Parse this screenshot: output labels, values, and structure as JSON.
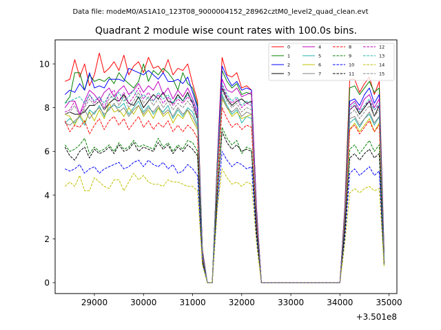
{
  "suptitle": "Data file: modeM0/AS1A10_123T08_9000004152_28962cztM0_level2_quad_clean.evt",
  "chart_data": {
    "type": "line",
    "title": "Quadrant 2 module wise count rates with 100.0s bins.",
    "xlabel": "",
    "ylabel": "",
    "x_offset_label": "+3.501e8",
    "xlim": [
      28200,
      35160
    ],
    "ylim": [
      -0.5,
      11.1
    ],
    "x_ticks": [
      29000,
      30000,
      31000,
      32000,
      33000,
      34000,
      35000
    ],
    "x_tick_labels": [
      "29000",
      "30000",
      "31000",
      "32000",
      "33000",
      "34000",
      "35000"
    ],
    "y_ticks": [
      0,
      2,
      4,
      6,
      8,
      10
    ],
    "y_tick_labels": [
      "0",
      "2",
      "4",
      "6",
      "8",
      "10"
    ],
    "grid": false,
    "legend_position": "top-right",
    "x": [
      28400,
      28500,
      28600,
      28700,
      28800,
      28900,
      29000,
      29100,
      29200,
      29300,
      29400,
      29500,
      29600,
      29700,
      29800,
      29900,
      30000,
      30100,
      30200,
      30300,
      30400,
      30500,
      30600,
      30700,
      30800,
      30900,
      31000,
      31100,
      31200,
      31300,
      31400,
      31500,
      31600,
      31700,
      31800,
      31900,
      32000,
      32100,
      32200,
      32300,
      32400,
      32500,
      32600,
      32700,
      32800,
      32900,
      33000,
      33100,
      33200,
      33300,
      33400,
      33500,
      33600,
      33700,
      33800,
      33900,
      34000,
      34100,
      34200,
      34300,
      34400,
      34500,
      34600,
      34700,
      34800,
      34900
    ],
    "series": [
      {
        "name": "0",
        "color": "#ff0000",
        "style": "solid",
        "values": [
          9.2,
          9.3,
          10.2,
          9.4,
          10.0,
          9.0,
          9.5,
          10.5,
          9.6,
          9.8,
          10.1,
          9.7,
          10.4,
          9.5,
          9.9,
          10.1,
          9.6,
          10.3,
          9.8,
          9.9,
          9.6,
          10.2,
          9.5,
          9.8,
          9.7,
          10.0,
          9.1,
          8.3,
          1.5,
          0.0,
          0.0,
          5.5,
          10.3,
          9.5,
          9.4,
          9.6,
          8.9,
          9.0,
          8.8,
          3.5,
          0.0,
          0.0,
          0.0,
          0.0,
          0.0,
          0.0,
          0.0,
          0.0,
          0.0,
          0.0,
          0.0,
          0.0,
          0.0,
          0.0,
          0.0,
          0.0,
          0.0,
          3.5,
          9.3,
          9.3,
          8.7,
          9.1,
          9.4,
          8.6,
          9.2,
          1.4
        ]
      },
      {
        "name": "1",
        "color": "#008000",
        "style": "solid",
        "values": [
          8.2,
          8.5,
          9.6,
          9.6,
          8.8,
          9.5,
          9.2,
          9.3,
          9.2,
          9.4,
          9.1,
          9.6,
          9.3,
          9.1,
          8.9,
          9.2,
          10.0,
          9.2,
          9.7,
          9.5,
          9.8,
          9.6,
          9.3,
          8.8,
          9.6,
          9.1,
          8.9,
          8.1,
          1.4,
          0.0,
          0.0,
          5.4,
          9.7,
          9.2,
          8.9,
          9.1,
          8.6,
          8.7,
          8.6,
          3.3,
          0.0,
          0.0,
          0.0,
          0.0,
          0.0,
          0.0,
          0.0,
          0.0,
          0.0,
          0.0,
          0.0,
          0.0,
          0.0,
          0.0,
          0.0,
          0.0,
          0.0,
          3.4,
          8.9,
          9.0,
          8.6,
          8.9,
          9.2,
          8.7,
          8.9,
          1.3
        ]
      },
      {
        "name": "2",
        "color": "#0000ff",
        "style": "solid",
        "values": [
          8.6,
          8.8,
          8.7,
          9.1,
          8.8,
          9.6,
          8.9,
          9.0,
          8.9,
          9.3,
          9.3,
          9.3,
          9.2,
          9.8,
          9.7,
          9.6,
          9.5,
          9.7,
          9.5,
          9.3,
          9.6,
          9.2,
          9.2,
          9.3,
          9.1,
          9.4,
          8.7,
          8.0,
          1.4,
          0.0,
          0.0,
          5.3,
          9.9,
          9.4,
          9.0,
          9.2,
          8.8,
          8.9,
          8.8,
          3.4,
          0.0,
          0.0,
          0.0,
          0.0,
          0.0,
          0.0,
          0.0,
          0.0,
          0.0,
          0.0,
          0.0,
          0.0,
          0.0,
          0.0,
          0.0,
          0.0,
          0.0,
          3.3,
          8.3,
          8.4,
          8.1,
          8.6,
          8.9,
          8.2,
          8.6,
          1.2
        ]
      },
      {
        "name": "3",
        "color": "#000000",
        "style": "solid",
        "values": [
          7.7,
          7.8,
          7.7,
          7.7,
          7.8,
          8.1,
          8.1,
          8.3,
          7.9,
          8.2,
          8.4,
          8.3,
          8.6,
          8.2,
          8.1,
          8.5,
          8.0,
          8.3,
          8.6,
          8.4,
          8.7,
          8.3,
          8.2,
          8.6,
          8.3,
          8.7,
          8.2,
          7.5,
          1.3,
          0.0,
          0.0,
          5.0,
          8.9,
          8.4,
          8.1,
          8.3,
          8.4,
          8.2,
          8.3,
          3.2,
          0.0,
          0.0,
          0.0,
          0.0,
          0.0,
          0.0,
          0.0,
          0.0,
          0.0,
          0.0,
          0.0,
          0.0,
          0.0,
          0.0,
          0.0,
          0.0,
          0.0,
          3.1,
          7.9,
          8.1,
          7.7,
          8.0,
          8.3,
          7.6,
          8.1,
          1.1
        ]
      },
      {
        "name": "4",
        "color": "#bf00bf",
        "style": "solid",
        "values": [
          8.0,
          8.3,
          8.3,
          7.7,
          8.3,
          8.8,
          8.6,
          8.3,
          8.7,
          8.9,
          8.5,
          8.8,
          9.0,
          8.6,
          8.8,
          9.1,
          8.7,
          9.0,
          8.8,
          9.2,
          8.6,
          8.9,
          8.4,
          8.8,
          8.5,
          8.9,
          8.4,
          7.8,
          1.3,
          0.0,
          0.0,
          5.2,
          9.3,
          8.8,
          8.7,
          8.9,
          8.5,
          8.6,
          8.7,
          3.3,
          0.0,
          0.0,
          0.0,
          0.0,
          0.0,
          0.0,
          0.0,
          0.0,
          0.0,
          0.0,
          0.0,
          0.0,
          0.0,
          0.0,
          0.0,
          0.0,
          0.0,
          3.3,
          8.1,
          8.3,
          7.9,
          8.4,
          8.6,
          8.0,
          8.4,
          1.2
        ]
      },
      {
        "name": "5",
        "color": "#20b2aa",
        "style": "solid",
        "values": [
          7.3,
          7.5,
          7.3,
          7.6,
          7.2,
          7.9,
          7.7,
          8.1,
          7.6,
          8.0,
          8.1,
          8.0,
          8.2,
          7.7,
          8.0,
          8.3,
          7.8,
          8.1,
          7.7,
          8.0,
          7.8,
          8.1,
          7.5,
          7.9,
          7.6,
          8.0,
          7.8,
          7.2,
          1.2,
          0.0,
          0.0,
          4.8,
          8.6,
          8.1,
          7.7,
          7.9,
          7.3,
          7.6,
          7.5,
          2.9,
          0.0,
          0.0,
          0.0,
          0.0,
          0.0,
          0.0,
          0.0,
          0.0,
          0.0,
          0.0,
          0.0,
          0.0,
          0.0,
          0.0,
          0.0,
          0.0,
          0.0,
          2.9,
          7.3,
          7.5,
          7.1,
          7.5,
          7.7,
          7.2,
          7.6,
          1.0
        ]
      },
      {
        "name": "6",
        "color": "#bfbf00",
        "style": "solid",
        "values": [
          7.7,
          7.6,
          7.2,
          7.7,
          7.3,
          7.8,
          7.4,
          7.9,
          7.5,
          8.2,
          7.8,
          7.9,
          7.6,
          8.0,
          7.7,
          8.1,
          7.6,
          7.9,
          7.5,
          8.0,
          7.6,
          7.8,
          7.3,
          7.7,
          7.5,
          7.9,
          7.4,
          7.0,
          1.2,
          0.0,
          0.0,
          4.7,
          8.4,
          8.0,
          7.6,
          7.8,
          7.5,
          7.6,
          7.7,
          2.9,
          0.0,
          0.0,
          0.0,
          0.0,
          0.0,
          0.0,
          0.0,
          0.0,
          0.0,
          0.0,
          0.0,
          0.0,
          0.0,
          0.0,
          0.0,
          0.0,
          0.0,
          2.9,
          7.0,
          7.3,
          6.9,
          7.2,
          7.5,
          6.9,
          7.3,
          1.0
        ]
      },
      {
        "name": "7",
        "color": "#808080",
        "style": "solid",
        "values": [
          7.3,
          7.2,
          7.4,
          7.6,
          7.9,
          7.5,
          7.8,
          8.0,
          7.7,
          7.9,
          8.2,
          7.8,
          8.0,
          7.6,
          7.9,
          8.1,
          7.7,
          8.0,
          7.8,
          8.1,
          7.7,
          7.9,
          7.6,
          8.0,
          7.7,
          7.9,
          7.6,
          7.1,
          1.2,
          0.0,
          0.0,
          4.8,
          8.5,
          8.0,
          7.8,
          8.0,
          7.6,
          7.8,
          7.7,
          3.0,
          0.0,
          0.0,
          0.0,
          0.0,
          0.0,
          0.0,
          0.0,
          0.0,
          0.0,
          0.0,
          0.0,
          0.0,
          0.0,
          0.0,
          0.0,
          0.0,
          0.0,
          3.0,
          7.5,
          7.6,
          7.2,
          7.5,
          7.8,
          7.3,
          7.6,
          1.0
        ]
      },
      {
        "name": "8",
        "color": "#ff0000",
        "style": "dashed",
        "values": [
          7.4,
          6.9,
          7.2,
          7.1,
          7.4,
          6.8,
          7.2,
          7.5,
          7.0,
          7.4,
          7.6,
          7.2,
          7.5,
          7.0,
          7.3,
          7.6,
          7.1,
          7.4,
          7.0,
          7.3,
          7.1,
          7.4,
          6.9,
          7.2,
          6.9,
          7.2,
          7.0,
          6.6,
          1.1,
          0.0,
          0.0,
          4.5,
          8.0,
          7.5,
          7.1,
          7.3,
          7.0,
          7.2,
          7.1,
          2.8,
          0.0,
          0.0,
          0.0,
          0.0,
          0.0,
          0.0,
          0.0,
          0.0,
          0.0,
          0.0,
          0.0,
          0.0,
          0.0,
          0.0,
          0.0,
          0.0,
          0.0,
          2.8,
          7.0,
          7.2,
          6.8,
          7.1,
          7.4,
          6.9,
          7.2,
          1.0
        ]
      },
      {
        "name": "9",
        "color": "#008000",
        "style": "dashed",
        "values": [
          6.3,
          6.0,
          6.1,
          6.3,
          6.6,
          5.9,
          6.2,
          6.0,
          6.1,
          6.3,
          6.0,
          6.4,
          6.1,
          6.2,
          6.5,
          6.2,
          6.3,
          6.2,
          6.1,
          6.6,
          6.2,
          6.4,
          6.0,
          6.3,
          6.1,
          6.5,
          6.4,
          6.0,
          1.0,
          0.0,
          0.0,
          4.0,
          7.1,
          6.6,
          6.3,
          6.5,
          5.9,
          6.2,
          6.1,
          2.4,
          0.0,
          0.0,
          0.0,
          0.0,
          0.0,
          0.0,
          0.0,
          0.0,
          0.0,
          0.0,
          0.0,
          0.0,
          0.0,
          0.0,
          0.0,
          0.0,
          0.0,
          2.5,
          6.1,
          6.3,
          5.9,
          6.2,
          6.5,
          6.0,
          6.3,
          0.9
        ]
      },
      {
        "name": "10",
        "color": "#0000ff",
        "style": "dashed",
        "values": [
          5.2,
          5.1,
          5.2,
          5.4,
          5.0,
          5.2,
          5.3,
          5.0,
          5.2,
          5.3,
          5.4,
          5.5,
          5.2,
          5.3,
          5.5,
          5.6,
          5.3,
          5.6,
          5.4,
          5.3,
          5.5,
          5.2,
          5.4,
          5.0,
          5.1,
          5.4,
          5.2,
          4.9,
          0.9,
          0.0,
          0.0,
          3.4,
          6.0,
          5.6,
          5.3,
          5.5,
          5.4,
          5.2,
          5.3,
          2.1,
          0.0,
          0.0,
          0.0,
          0.0,
          0.0,
          0.0,
          0.0,
          0.0,
          0.0,
          0.0,
          0.0,
          0.0,
          0.0,
          0.0,
          0.0,
          0.0,
          0.0,
          2.1,
          5.0,
          5.2,
          4.9,
          5.1,
          5.3,
          4.9,
          5.1,
          0.8
        ]
      },
      {
        "name": "11",
        "color": "#000000",
        "style": "dashed",
        "values": [
          6.2,
          5.8,
          5.6,
          6.0,
          6.2,
          5.7,
          6.1,
          5.9,
          6.0,
          6.2,
          5.9,
          6.3,
          6.0,
          6.1,
          6.4,
          6.0,
          6.2,
          6.1,
          6.0,
          6.4,
          6.1,
          6.3,
          5.9,
          6.2,
          6.0,
          6.3,
          6.1,
          5.8,
          1.0,
          0.0,
          0.0,
          3.9,
          6.9,
          6.4,
          6.1,
          6.3,
          6.0,
          6.1,
          6.0,
          2.4,
          0.0,
          0.0,
          0.0,
          0.0,
          0.0,
          0.0,
          0.0,
          0.0,
          0.0,
          0.0,
          0.0,
          0.0,
          0.0,
          0.0,
          0.0,
          0.0,
          0.0,
          2.4,
          5.7,
          5.9,
          5.6,
          5.9,
          6.1,
          5.7,
          5.9,
          0.8
        ]
      },
      {
        "name": "12",
        "color": "#bf00bf",
        "style": "dashed",
        "values": [
          7.8,
          7.9,
          8.3,
          7.7,
          8.1,
          8.6,
          8.2,
          8.5,
          8.0,
          8.6,
          8.8,
          8.3,
          8.7,
          8.2,
          8.5,
          8.9,
          8.4,
          8.7,
          8.3,
          8.6,
          8.2,
          8.5,
          8.1,
          8.4,
          8.2,
          8.5,
          8.2,
          7.6,
          1.3,
          0.0,
          0.0,
          5.1,
          9.0,
          8.5,
          8.2,
          8.4,
          8.0,
          8.2,
          8.1,
          3.2,
          0.0,
          0.0,
          0.0,
          0.0,
          0.0,
          0.0,
          0.0,
          0.0,
          0.0,
          0.0,
          0.0,
          0.0,
          0.0,
          0.0,
          0.0,
          0.0,
          0.0,
          3.2,
          7.9,
          8.1,
          7.8,
          8.1,
          8.3,
          7.9,
          8.1,
          1.1
        ]
      },
      {
        "name": "13",
        "color": "#20b2aa",
        "style": "dashed",
        "values": [
          8.2,
          8.3,
          8.4,
          8.5,
          8.2,
          8.6,
          8.3,
          8.5,
          8.2,
          8.6,
          8.4,
          8.7,
          8.3,
          8.5,
          8.8,
          8.4,
          8.6,
          8.4,
          8.3,
          8.7,
          8.4,
          8.6,
          8.2,
          8.5,
          8.3,
          8.6,
          8.3,
          7.7,
          1.3,
          0.0,
          0.0,
          5.2,
          9.1,
          8.6,
          8.3,
          8.5,
          8.1,
          8.3,
          8.2,
          3.2,
          0.0,
          0.0,
          0.0,
          0.0,
          0.0,
          0.0,
          0.0,
          0.0,
          0.0,
          0.0,
          0.0,
          0.0,
          0.0,
          0.0,
          0.0,
          0.0,
          0.0,
          3.2,
          8.0,
          8.2,
          7.8,
          8.1,
          8.4,
          7.9,
          8.2,
          1.1
        ]
      },
      {
        "name": "14",
        "color": "#bfbf00",
        "style": "dashed",
        "values": [
          4.4,
          4.6,
          4.4,
          4.9,
          4.2,
          4.2,
          4.8,
          4.6,
          4.4,
          4.3,
          4.7,
          4.7,
          4.2,
          4.6,
          5.0,
          4.7,
          4.9,
          4.6,
          4.5,
          4.5,
          4.4,
          4.7,
          4.6,
          4.6,
          4.5,
          4.4,
          4.4,
          4.2,
          0.8,
          0.0,
          0.0,
          3.4,
          5.2,
          4.8,
          4.5,
          4.6,
          4.4,
          4.6,
          4.5,
          1.8,
          0.0,
          0.0,
          0.0,
          0.0,
          0.0,
          0.0,
          0.0,
          0.0,
          0.0,
          0.0,
          0.0,
          0.0,
          0.0,
          0.0,
          0.0,
          0.0,
          0.0,
          1.8,
          4.1,
          4.3,
          4.1,
          4.3,
          4.4,
          4.2,
          4.3,
          0.7
        ]
      },
      {
        "name": "15",
        "color": "#808080",
        "style": "dashed",
        "values": [
          7.7,
          7.8,
          8.1,
          7.6,
          8.0,
          8.4,
          8.1,
          8.3,
          7.9,
          8.4,
          8.6,
          8.1,
          8.5,
          8.0,
          8.3,
          8.7,
          8.2,
          8.5,
          8.1,
          8.4,
          8.0,
          8.3,
          7.9,
          8.2,
          8.0,
          8.3,
          8.0,
          7.4,
          1.3,
          0.0,
          0.0,
          5.0,
          8.8,
          8.3,
          8.0,
          8.2,
          7.8,
          8.0,
          7.9,
          3.1,
          0.0,
          0.0,
          0.0,
          0.0,
          0.0,
          0.0,
          0.0,
          0.0,
          0.0,
          0.0,
          0.0,
          0.0,
          0.0,
          0.0,
          0.0,
          0.0,
          0.0,
          3.1,
          7.7,
          7.9,
          7.5,
          7.8,
          8.1,
          7.6,
          7.9,
          1.0
        ]
      }
    ]
  }
}
